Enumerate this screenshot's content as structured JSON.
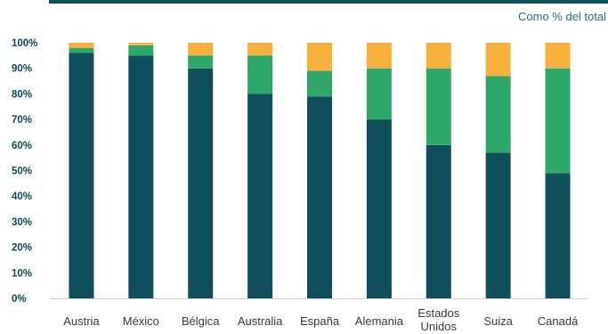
{
  "chart_data": {
    "type": "bar",
    "stacked": true,
    "unit_note": "Como % del total",
    "categories": [
      "Austria",
      "México",
      "Bélgica",
      "Australia",
      "España",
      "Alemania",
      "Estados Unidos",
      "Suiza",
      "Canadá"
    ],
    "ylim": [
      0,
      100
    ],
    "yticks": [
      "0%",
      "10%",
      "20%",
      "30%",
      "40%",
      "50%",
      "60%",
      "70%",
      "80%",
      "90%",
      "100%"
    ],
    "series": [
      {
        "color": "#0f4f5c",
        "values": [
          96,
          95,
          90,
          80,
          79,
          70,
          60,
          57,
          49
        ]
      },
      {
        "color": "#2ea86a",
        "values": [
          2,
          4,
          5,
          15,
          10,
          20,
          30,
          30,
          41
        ]
      },
      {
        "color": "#f7b03c",
        "values": [
          2,
          1,
          5,
          5,
          11,
          10,
          10,
          13,
          10
        ]
      }
    ],
    "grid": false,
    "legend": "none"
  }
}
